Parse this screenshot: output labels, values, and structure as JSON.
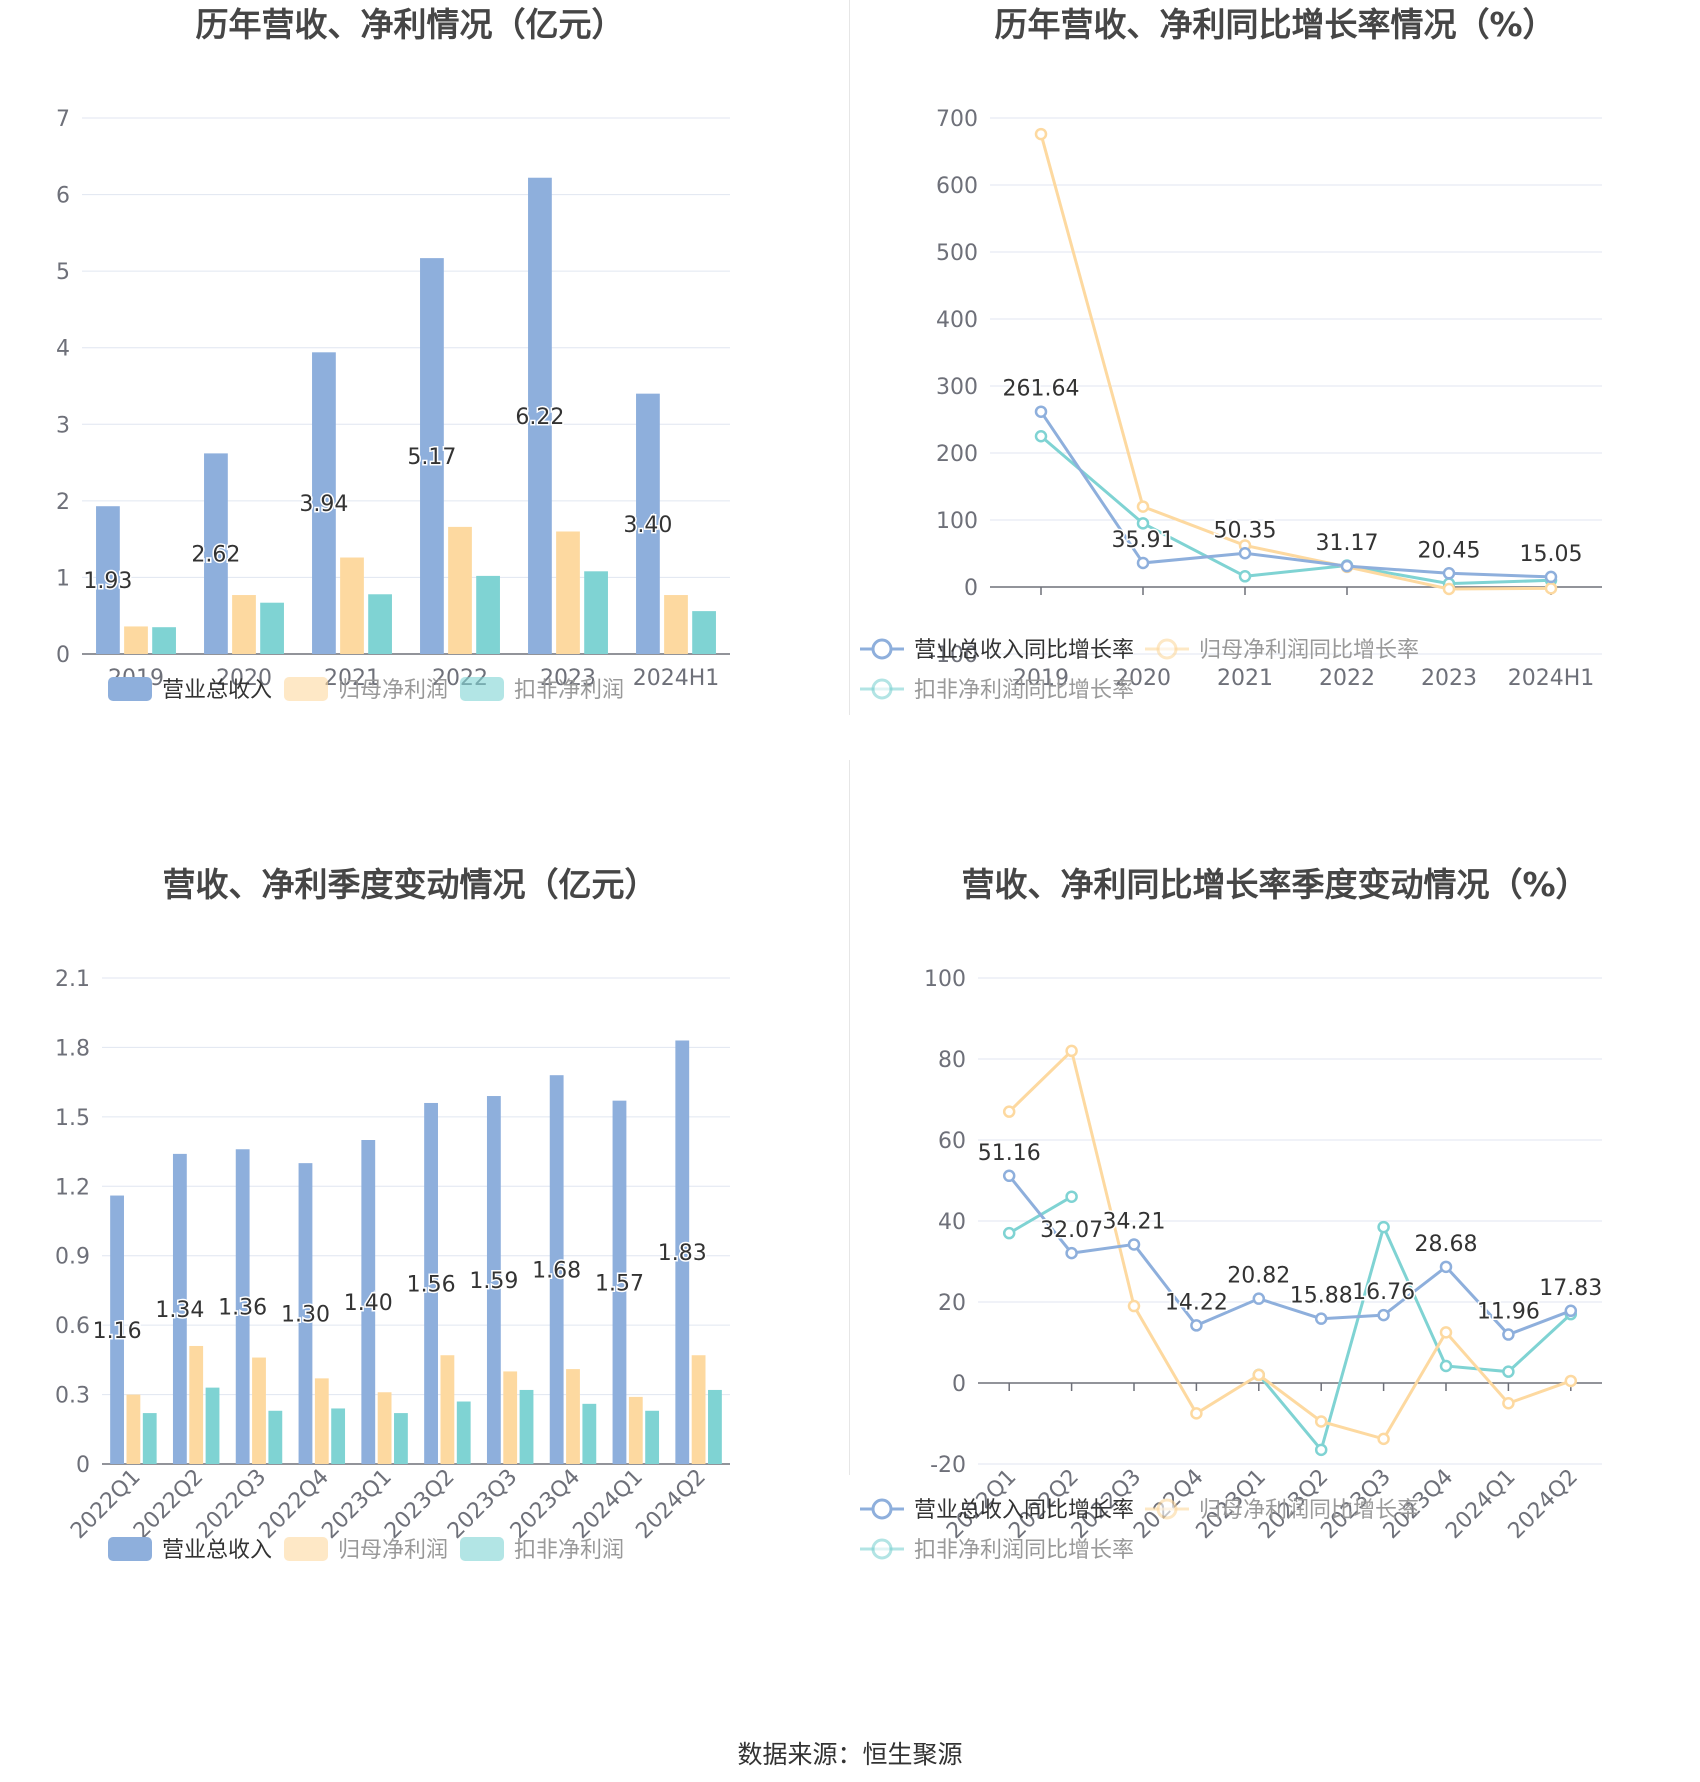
{
  "source": "数据来源：恒生聚源",
  "charts": [
    {
      "type": "bar",
      "title": "历年营收、净利情况（亿元）",
      "categories": [
        "2019",
        "2020",
        "2021",
        "2022",
        "2023",
        "2024H1"
      ],
      "ylim": [
        0,
        7
      ],
      "yticks": [
        0,
        1,
        2,
        3,
        4,
        5,
        6,
        7
      ],
      "series": [
        {
          "name": "营业总收入",
          "color": "#8eafdc",
          "values": [
            1.93,
            2.62,
            3.94,
            5.17,
            6.22,
            3.4
          ],
          "labels": [
            "1.93",
            "2.62",
            "3.94",
            "5.17",
            "6.22",
            "3.40"
          ]
        },
        {
          "name": "归母净利润",
          "color": "#fdd9a0",
          "values": [
            0.36,
            0.77,
            1.26,
            1.66,
            1.6,
            0.77
          ]
        },
        {
          "name": "扣非净利润",
          "color": "#7fd3d3",
          "values": [
            0.35,
            0.67,
            0.78,
            1.02,
            1.08,
            0.56
          ]
        }
      ]
    },
    {
      "type": "line",
      "title": "历年营收、净利同比增长率情况（%）",
      "categories": [
        "2019",
        "2020",
        "2021",
        "2022",
        "2023",
        "2024H1"
      ],
      "ylim": [
        -100,
        700
      ],
      "yticks": [
        -100,
        0,
        100,
        200,
        300,
        400,
        500,
        600,
        700
      ],
      "series": [
        {
          "name": "营业总收入同比增长率",
          "color": "#8eafdc",
          "values": [
            261.64,
            35.91,
            50.35,
            31.17,
            20.45,
            15.05
          ],
          "labels": [
            "261.64",
            "35.91",
            "50.35",
            "31.17",
            "20.45",
            "15.05"
          ]
        },
        {
          "name": "归母净利润同比增长率",
          "color": "#fdd9a0",
          "values": [
            676,
            120,
            62,
            30,
            -3,
            -2
          ]
        },
        {
          "name": "扣非净利润同比增长率",
          "color": "#7fd3d3",
          "values": [
            225,
            95,
            16,
            32,
            5,
            10
          ]
        }
      ]
    },
    {
      "type": "bar",
      "title": "营收、净利季度变动情况（亿元）",
      "categories": [
        "2022Q1",
        "2022Q2",
        "2022Q3",
        "2022Q4",
        "2023Q1",
        "2023Q2",
        "2023Q3",
        "2023Q4",
        "2024Q1",
        "2024Q2"
      ],
      "ylim": [
        0,
        2.1
      ],
      "yticks": [
        "0",
        "0.3",
        "0.6",
        "0.9",
        "1.2",
        "1.5",
        "1.8",
        "2.1"
      ],
      "series": [
        {
          "name": "营业总收入",
          "color": "#8eafdc",
          "values": [
            1.16,
            1.34,
            1.36,
            1.3,
            1.4,
            1.56,
            1.59,
            1.68,
            1.57,
            1.83
          ],
          "labels": [
            "1.16",
            "1.34",
            "1.36",
            "1.30",
            "1.40",
            "1.56",
            "1.59",
            "1.68",
            "1.57",
            "1.83"
          ]
        },
        {
          "name": "归母净利润",
          "color": "#fdd9a0",
          "values": [
            0.3,
            0.51,
            0.46,
            0.37,
            0.31,
            0.47,
            0.4,
            0.41,
            0.29,
            0.47
          ]
        },
        {
          "name": "扣非净利润",
          "color": "#7fd3d3",
          "values": [
            0.22,
            0.33,
            0.23,
            0.24,
            0.22,
            0.27,
            0.32,
            0.26,
            0.23,
            0.32
          ]
        }
      ]
    },
    {
      "type": "line",
      "title": "营收、净利同比增长率季度变动情况（%）",
      "categories": [
        "2022Q1",
        "2022Q2",
        "2022Q3",
        "2022Q4",
        "2023Q1",
        "2023Q2",
        "2023Q3",
        "2023Q4",
        "2024Q1",
        "2024Q2"
      ],
      "ylim": [
        -20,
        100
      ],
      "yticks": [
        -20,
        0,
        20,
        40,
        60,
        80,
        100
      ],
      "series": [
        {
          "name": "营业总收入同比增长率",
          "color": "#8eafdc",
          "values": [
            51.16,
            32.07,
            34.21,
            14.22,
            20.82,
            15.88,
            16.76,
            28.68,
            11.96,
            17.83
          ],
          "labels": [
            "51.16",
            "32.07",
            "34.21",
            "14.22",
            "20.82",
            "15.88",
            "16.76",
            "28.68",
            "11.96",
            "17.83"
          ]
        },
        {
          "name": "归母净利润同比增长率",
          "color": "#fdd9a0",
          "values": [
            67,
            82,
            19,
            -7.5,
            2,
            -9.5,
            -13.8,
            12.5,
            -5,
            0.5
          ]
        },
        {
          "name": "扣非净利润同比增长率",
          "color": "#7fd3d3",
          "values": [
            37,
            46,
            null,
            null,
            2,
            -16.5,
            38.5,
            4.2,
            2.8,
            17
          ]
        }
      ]
    }
  ]
}
